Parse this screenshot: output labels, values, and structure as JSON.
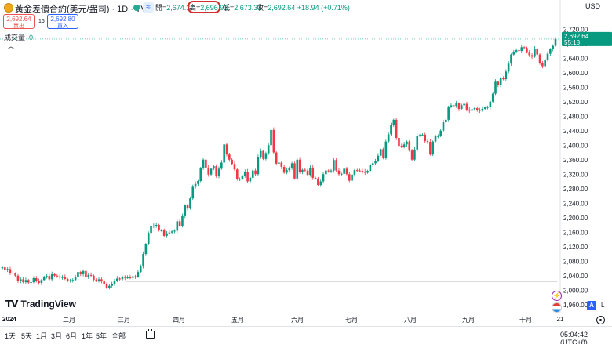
{
  "header": {
    "symbol_title": "黃金差價合約(美元/盎司) · 1D · TVC",
    "ohlc": [
      {
        "label": "開=",
        "value": "2,674.37"
      },
      {
        "label": "高=",
        "value": "2,696.93"
      },
      {
        "label": "低=",
        "value": "2,673.33"
      },
      {
        "label": "收=",
        "value": "2,692.64 +18.94 (+0.71%)"
      }
    ],
    "currency": "USD"
  },
  "trade": {
    "sell_price": "2,692.64",
    "sell_label": "賣出",
    "spread": "16",
    "buy_price": "2,692.80",
    "buy_label": "買入"
  },
  "volume": {
    "label": "成交量",
    "value": "0"
  },
  "logo": {
    "text": "TradingView"
  },
  "chart_data": {
    "type": "candlestick",
    "symbol": "XAUUSD",
    "interval": "1D",
    "ylim": [
      1940,
      2740
    ],
    "y_ticks": [
      "2,720.00",
      "2,680.00",
      "2,640.00",
      "2,600.00",
      "2,560.00",
      "2,520.00",
      "2,480.00",
      "2,440.00",
      "2,400.00",
      "2,360.00",
      "2,320.00",
      "2,280.00",
      "2,240.00",
      "2,200.00",
      "2,160.00",
      "2,120.00",
      "2,080.00",
      "2,040.00",
      "2,000.00",
      "1,960.00"
    ],
    "y_tick_values": [
      2720,
      2680,
      2640,
      2600,
      2560,
      2520,
      2480,
      2440,
      2400,
      2360,
      2320,
      2280,
      2240,
      2200,
      2160,
      2120,
      2080,
      2040,
      2000,
      1960
    ],
    "x_labels": [
      "2024",
      "二月",
      "三月",
      "四月",
      "五月",
      "六月",
      "七月",
      "八月",
      "九月",
      "十月",
      "21"
    ],
    "last_price": "2,692.64",
    "countdown": "55:18",
    "last_value": 2692.64,
    "reference_line": 2024,
    "closes": [
      2063,
      2055,
      2058,
      2048,
      2046,
      2040,
      2025,
      2030,
      2022,
      2028,
      2021,
      2022,
      2033,
      2025,
      2020,
      2028,
      2036,
      2039,
      2030,
      2044,
      2040,
      2038,
      2035,
      2036,
      2031,
      2026,
      2027,
      2028,
      2036,
      2050,
      2044,
      2053,
      2035,
      2042,
      2040,
      2029,
      2025,
      2030,
      2024,
      2018,
      2006,
      2012,
      2018,
      2025,
      2032,
      2030,
      2036,
      2034,
      2035,
      2034,
      2038,
      2037,
      2050,
      2065,
      2100,
      2127,
      2158,
      2176,
      2178,
      2180,
      2165,
      2165,
      2150,
      2157,
      2159,
      2162,
      2164,
      2190,
      2177,
      2204,
      2234,
      2225,
      2253,
      2285,
      2293,
      2301,
      2336,
      2360,
      2338,
      2319,
      2335,
      2342,
      2315,
      2335,
      2352,
      2402,
      2374,
      2360,
      2348,
      2333,
      2307,
      2307,
      2314,
      2327,
      2300,
      2310,
      2330,
      2320,
      2368,
      2384,
      2362,
      2378,
      2400,
      2442,
      2380,
      2349,
      2352,
      2340,
      2324,
      2331,
      2338,
      2350,
      2308,
      2360,
      2326,
      2332,
      2330,
      2318,
      2338,
      2310,
      2308,
      2290,
      2300,
      2320,
      2330,
      2328,
      2330,
      2359,
      2330,
      2320,
      2321,
      2335,
      2320,
      2302,
      2319,
      2331,
      2330,
      2329,
      2327,
      2324,
      2329,
      2345,
      2350,
      2356,
      2371,
      2389,
      2366,
      2410,
      2430,
      2455,
      2470,
      2420,
      2398,
      2396,
      2402,
      2410,
      2385,
      2360,
      2388,
      2426,
      2428,
      2429,
      2411,
      2409,
      2374,
      2410,
      2425,
      2425,
      2440,
      2463,
      2470,
      2505,
      2510,
      2508,
      2515,
      2500,
      2510,
      2514,
      2498,
      2495,
      2499,
      2502,
      2497,
      2495,
      2500,
      2504,
      2505,
      2520,
      2542,
      2575,
      2565,
      2585,
      2582,
      2603,
      2625,
      2650,
      2658,
      2662,
      2660,
      2670,
      2668,
      2657,
      2648,
      2644,
      2666,
      2650,
      2627,
      2618,
      2635,
      2652,
      2665,
      2674,
      2693
    ]
  },
  "ranges": [
    "1天",
    "5天",
    "1月",
    "3月",
    "6月",
    "1年",
    "5年",
    "全部"
  ],
  "status": {
    "clock": "05:04:42 (UTC+8)"
  },
  "right_tools": {
    "a_label": "A",
    "l_label": "L"
  }
}
